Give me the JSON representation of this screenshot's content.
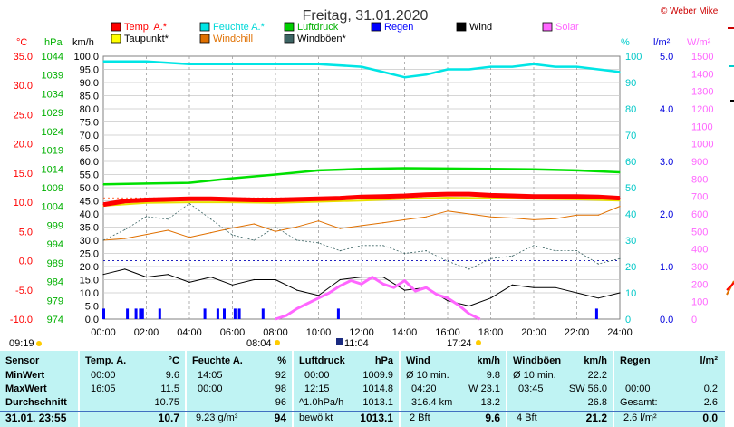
{
  "title": "Freitag, 31.01.2020",
  "credit": "© Weber Mike",
  "legend": [
    {
      "label": "Temp. A.*",
      "color": "#ff0000"
    },
    {
      "label": "Feuchte A.*",
      "color": "#00e5e5"
    },
    {
      "label": "Luftdruck",
      "color": "#00d000"
    },
    {
      "label": "Regen",
      "color": "#0000ff"
    },
    {
      "label": "Wind",
      "color": "#000000"
    },
    {
      "label": "Solar",
      "color": "#ff66ff"
    },
    {
      "label": "Taupunkt*",
      "color": "#ffff00"
    },
    {
      "label": "Windchill",
      "color": "#e07000"
    },
    {
      "label": "Windböen*",
      "color": "#3c6464"
    }
  ],
  "axes": {
    "unit_c": "°C",
    "unit_hpa": "hPa",
    "unit_kmh": "km/h",
    "unit_pct": "%",
    "unit_lm2": "l/m²",
    "unit_wm2": "W/m²",
    "temp_ticks": [
      "35.0",
      "30.0",
      "25.0",
      "20.0",
      "15.0",
      "10.0",
      "5.0",
      "0.0",
      "-5.0",
      "-10.0"
    ],
    "hpa_ticks": [
      "1044",
      "1039",
      "1034",
      "1029",
      "1024",
      "1019",
      "1014",
      "1009",
      "1004",
      "999",
      "994",
      "989",
      "984",
      "979",
      "974"
    ],
    "kmh_ticks": [
      "100.0",
      "95.0",
      "90.0",
      "85.0",
      "80.0",
      "75.0",
      "70.0",
      "65.0",
      "60.0",
      "55.0",
      "50.0",
      "45.0",
      "40.0",
      "35.0",
      "30.0",
      "25.0",
      "20.0",
      "15.0",
      "10.0",
      "5.0",
      "0.0"
    ],
    "pct_ticks": [
      "100",
      "90",
      "80",
      "70",
      "60",
      "50",
      "40",
      "30",
      "20",
      "10",
      "0"
    ],
    "rain_ticks": [
      "5.0",
      "4.0",
      "3.0",
      "2.0",
      "1.0",
      "0.0"
    ],
    "solar_ticks": [
      "1500",
      "1400",
      "1300",
      "1200",
      "1100",
      "1000",
      "900",
      "800",
      "700",
      "600",
      "500",
      "400",
      "300",
      "200",
      "100",
      "0"
    ],
    "time_ticks": [
      "00:00",
      "02:00",
      "04:00",
      "06:00",
      "08:00",
      "10:00",
      "12:00",
      "14:00",
      "16:00",
      "18:00",
      "20:00",
      "22:00",
      "24:00"
    ]
  },
  "sun": {
    "moonrise": "09:19",
    "sunrise": "08:04",
    "noon": "11:04",
    "sunset": "17:24"
  },
  "chart_data": {
    "type": "line",
    "title": "Freitag, 31.01.2020",
    "x_unit": "hour",
    "xlim": [
      0,
      24
    ],
    "series": [
      {
        "name": "Temp. A.*",
        "axis": "°C",
        "ylim": [
          -10,
          35
        ],
        "x": [
          0,
          1,
          2,
          3,
          4,
          5,
          6,
          7,
          8,
          9,
          10,
          11,
          12,
          13,
          14,
          15,
          16,
          17,
          18,
          19,
          20,
          21,
          22,
          23,
          24
        ],
        "y": [
          9.6,
          10.2,
          10.4,
          10.5,
          10.6,
          10.6,
          10.5,
          10.4,
          10.4,
          10.5,
          10.6,
          10.7,
          10.9,
          11.0,
          11.1,
          11.3,
          11.4,
          11.4,
          11.2,
          11.1,
          11.0,
          11.0,
          11.0,
          10.9,
          10.7
        ]
      },
      {
        "name": "Feuchte A.*",
        "axis": "%",
        "ylim": [
          0,
          100
        ],
        "x": [
          0,
          2,
          4,
          6,
          8,
          10,
          12,
          13,
          14,
          15,
          16,
          17,
          18,
          19,
          20,
          21,
          22,
          23,
          24
        ],
        "y": [
          98,
          98,
          97,
          97,
          97,
          97,
          96,
          94,
          92,
          93,
          95,
          95,
          96,
          96,
          97,
          96,
          96,
          95,
          94
        ]
      },
      {
        "name": "Luftdruck",
        "axis": "hPa",
        "ylim": [
          974,
          1044
        ],
        "x": [
          0,
          2,
          4,
          6,
          8,
          10,
          12,
          14,
          16,
          18,
          20,
          22,
          24
        ],
        "y": [
          1009.9,
          1010.1,
          1010.3,
          1011.5,
          1012.5,
          1013.6,
          1014.0,
          1014.2,
          1014.1,
          1014.0,
          1013.9,
          1013.6,
          1013.1
        ]
      },
      {
        "name": "Taupunkt*",
        "axis": "°C",
        "ylim": [
          -10,
          35
        ],
        "x": [
          0,
          2,
          4,
          6,
          8,
          10,
          12,
          14,
          16,
          18,
          20,
          22,
          24
        ],
        "y": [
          9.4,
          9.9,
          10.0,
          10.0,
          9.9,
          10.1,
          10.3,
          10.6,
          10.8,
          10.7,
          10.6,
          10.5,
          10.3
        ]
      },
      {
        "name": "Windchill",
        "axis": "°C",
        "ylim": [
          -10,
          35
        ],
        "x": [
          0,
          1,
          2,
          3,
          4,
          5,
          6,
          7,
          8,
          9,
          10,
          11,
          12,
          13,
          14,
          15,
          16,
          17,
          18,
          19,
          20,
          21,
          22,
          23,
          24
        ],
        "y": [
          3.5,
          3.8,
          4.5,
          5.2,
          4.0,
          4.8,
          5.6,
          6.3,
          5.0,
          5.8,
          6.8,
          5.5,
          6.0,
          6.5,
          7.0,
          7.5,
          8.5,
          8.0,
          7.5,
          7.3,
          7.0,
          7.2,
          7.8,
          7.8,
          9.3
        ]
      },
      {
        "name": "Windböen*",
        "axis": "km/h",
        "ylim": [
          0,
          100
        ],
        "x": [
          0,
          1,
          2,
          3,
          4,
          5,
          6,
          7,
          8,
          9,
          10,
          11,
          12,
          13,
          14,
          15,
          16,
          17,
          18,
          19,
          20,
          21,
          22,
          23,
          24
        ],
        "y": [
          30,
          34,
          39,
          38,
          44,
          38,
          32,
          30,
          35,
          30,
          29,
          26,
          28,
          28,
          25,
          26,
          22,
          19,
          23,
          24,
          28,
          26,
          26,
          21,
          23
        ]
      },
      {
        "name": "Wind",
        "axis": "km/h",
        "ylim": [
          0,
          100
        ],
        "x": [
          0,
          1,
          2,
          3,
          4,
          5,
          6,
          7,
          8,
          9,
          10,
          11,
          12,
          13,
          14,
          15,
          16,
          17,
          18,
          19,
          20,
          21,
          22,
          23,
          24
        ],
        "y": [
          17,
          19,
          16,
          17,
          14,
          16,
          13,
          15,
          15,
          11,
          9,
          15,
          16,
          16,
          11,
          12,
          7,
          5,
          8,
          13,
          12,
          12,
          10,
          8,
          10
        ]
      },
      {
        "name": "Solar",
        "axis": "W/m²",
        "ylim": [
          0,
          1500
        ],
        "x": [
          8,
          8.5,
          9,
          9.5,
          10,
          10.5,
          11,
          11.5,
          12,
          12.5,
          13,
          13.5,
          14,
          14.5,
          15,
          15.5,
          16,
          16.5,
          17,
          17.5
        ],
        "y": [
          0,
          20,
          60,
          90,
          120,
          150,
          190,
          220,
          200,
          240,
          200,
          180,
          220,
          160,
          180,
          140,
          120,
          80,
          30,
          0
        ]
      },
      {
        "name": "Regen",
        "axis": "l/m²",
        "ylim": [
          0,
          5
        ],
        "x": [
          0.0,
          1.1,
          1.5,
          1.7,
          1.8,
          2.6,
          4.7,
          5.3,
          5.6,
          6.1,
          6.3,
          7.4,
          10.9,
          22.9
        ],
        "y": [
          0.2,
          0.2,
          0.2,
          0.2,
          0.2,
          0.2,
          0.2,
          0.2,
          0.2,
          0.2,
          0.2,
          0.2,
          0.2,
          0.2
        ]
      }
    ]
  },
  "stats": {
    "c1": {
      "title": "Sensor",
      "r1": "MinWert",
      "r2": "MaxWert",
      "r3": "Durchschnitt",
      "r4": "31.01. 23:55"
    },
    "c2": {
      "title": "Temp. A.",
      "unit": "°C",
      "r1a": "00:00",
      "r1b": "9.6",
      "r2a": "16:05",
      "r2b": "11.5",
      "r3b": "10.75",
      "r4b": "10.7"
    },
    "c3": {
      "title": "Feuchte A.",
      "unit": "%",
      "r1a": "14:05",
      "r1b": "92",
      "r2a": "00:00",
      "r2b": "98",
      "r3b": "96",
      "r4a": "9.23 g/m³",
      "r4b": "94"
    },
    "c4": {
      "title": "Luftdruck",
      "unit": "hPa",
      "r1a": "00:00",
      "r1b": "1009.9",
      "r2a": "12:15",
      "r2b": "1014.8",
      "r3a": "^1.0hPa/h",
      "r3b": "1013.1",
      "r4a": "bewölkt",
      "r4b": "1013.1"
    },
    "c5": {
      "title": "Wind",
      "unit": "km/h",
      "r1a": "Ø 10 min.",
      "r1b": "9.8",
      "r2a": "04:20",
      "r2m": "W 23.1",
      "r3a": "316.4 km",
      "r3b": "13.2",
      "r4a": "2 Bft",
      "r4b": "9.6"
    },
    "c6": {
      "title": "Windböen",
      "unit": "km/h",
      "r1a": "Ø 10 min.",
      "r1b": "22.2",
      "r2a": "03:45",
      "r2m": "SW 56.0",
      "r3b": "26.8",
      "r4a": "4 Bft",
      "r4b": "21.2"
    },
    "c7": {
      "title": "Regen",
      "unit": "l/m²",
      "r2a": "00:00",
      "r2b": "0.2",
      "r3a": "Gesamt:",
      "r3b": "2.6",
      "r4a": "2.6 l/m²",
      "r4b": "0.0"
    }
  }
}
